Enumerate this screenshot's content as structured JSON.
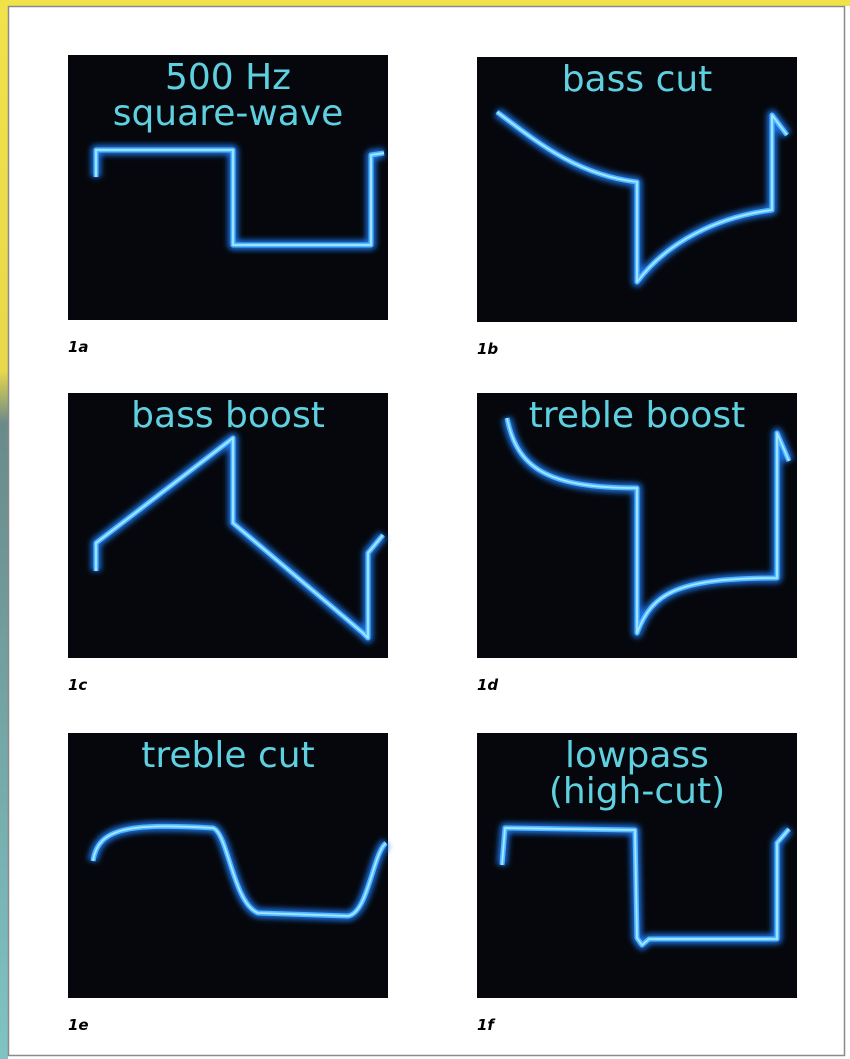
{
  "panels": [
    {
      "title": [
        "500 Hz",
        "square-wave"
      ],
      "caption": "1a"
    },
    {
      "title": [
        "bass cut"
      ],
      "caption": "1b"
    },
    {
      "title": [
        "bass boost"
      ],
      "caption": "1c"
    },
    {
      "title": [
        "treble boost"
      ],
      "caption": "1d"
    },
    {
      "title": [
        "treble cut"
      ],
      "caption": "1e"
    },
    {
      "title": [
        "lowpass",
        "(high-cut)"
      ],
      "caption": "1f"
    }
  ]
}
